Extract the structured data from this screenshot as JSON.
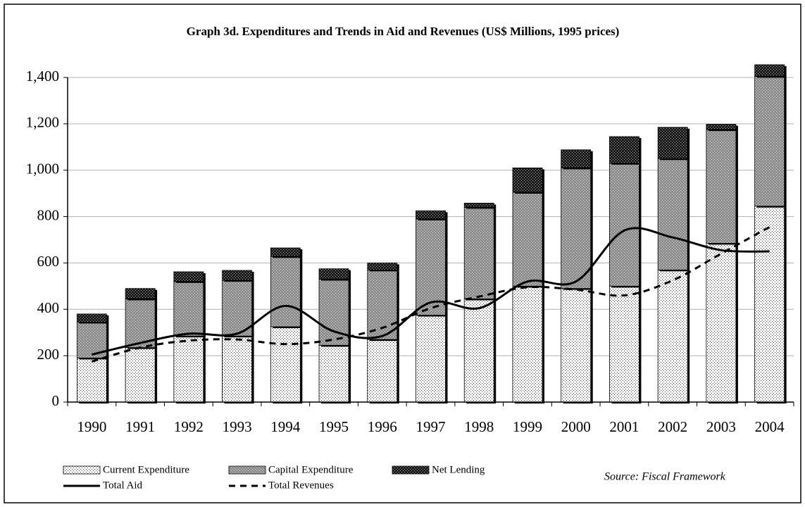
{
  "chart_data": {
    "type": "bar",
    "stacked": true,
    "title": "Graph 3d.  Expenditures and Trends in Aid and Revenues (US$ Millions, 1995 prices)",
    "categories": [
      "1990",
      "1991",
      "1992",
      "1993",
      "1994",
      "1995",
      "1996",
      "1997",
      "1998",
      "1999",
      "2000",
      "2001",
      "2002",
      "2003",
      "2004"
    ],
    "series": [
      {
        "name": "Current Expenditure",
        "type": "bar",
        "color": "#ffffff",
        "values": [
          190,
          235,
          285,
          285,
          325,
          245,
          270,
          375,
          445,
          500,
          490,
          500,
          570,
          685,
          845
        ]
      },
      {
        "name": "Capital Expenditure",
        "type": "bar",
        "color": "#8c8c8c",
        "values": [
          155,
          210,
          235,
          240,
          303,
          285,
          300,
          415,
          395,
          405,
          520,
          530,
          480,
          490,
          560
        ]
      },
      {
        "name": "Net Lending",
        "type": "bar",
        "color": "#1a1a1a",
        "values": [
          35,
          45,
          42,
          43,
          37,
          45,
          30,
          35,
          18,
          105,
          78,
          115,
          135,
          23,
          50
        ]
      },
      {
        "name": "Total Aid",
        "type": "line",
        "color": "#000000",
        "line_style": "solid",
        "values": [
          205,
          255,
          295,
          295,
          415,
          305,
          285,
          430,
          405,
          520,
          520,
          740,
          710,
          655,
          650
        ]
      },
      {
        "name": "Total Revenues",
        "type": "line",
        "color": "#000000",
        "line_style": "dashed",
        "values": [
          175,
          235,
          265,
          270,
          250,
          270,
          320,
          405,
          455,
          495,
          485,
          460,
          525,
          640,
          755
        ]
      }
    ],
    "ylim": [
      0,
      1400
    ],
    "yticks": [
      0,
      200,
      400,
      600,
      800,
      {
        "value": 1000,
        "label": "1,000"
      },
      {
        "value": 1200,
        "label": "1,200"
      },
      {
        "value": 1400,
        "label": "1,400"
      }
    ],
    "grid": true,
    "source": "Source: Fiscal Framework"
  }
}
